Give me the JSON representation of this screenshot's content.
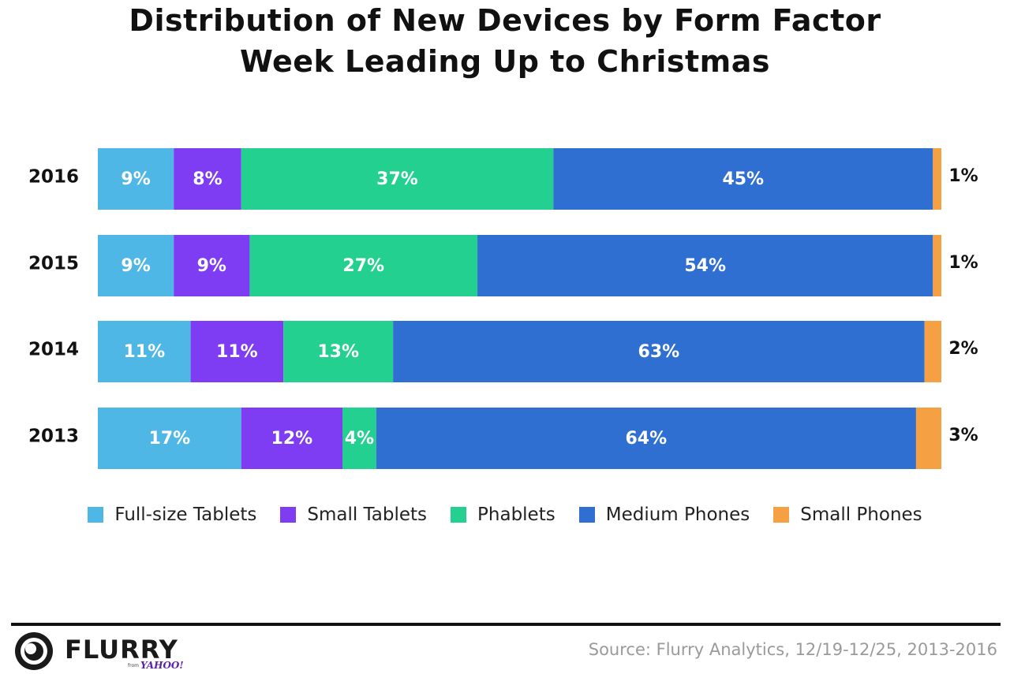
{
  "chart_data": {
    "type": "bar",
    "orientation": "horizontal",
    "stacked": true,
    "title": "Distribution of New Devices by Form Factor",
    "subtitle": "Week Leading Up to Christmas",
    "categories": [
      "2016",
      "2015",
      "2014",
      "2013"
    ],
    "series": [
      {
        "name": "Full-size Tablets",
        "color": "#4fb7e6",
        "values": [
          9,
          9,
          11,
          17
        ],
        "labels": [
          "9%",
          "9%",
          "11%",
          "17%"
        ]
      },
      {
        "name": "Small Tablets",
        "color": "#7e3df2",
        "values": [
          8,
          9,
          11,
          12
        ],
        "labels": [
          "8%",
          "9%",
          "11%",
          "12%"
        ]
      },
      {
        "name": "Phablets",
        "color": "#23d08f",
        "values": [
          37,
          27,
          13,
          4
        ],
        "labels": [
          "37%",
          "27%",
          "13%",
          "4%"
        ]
      },
      {
        "name": "Medium Phones",
        "color": "#2f6fd1",
        "values": [
          45,
          54,
          63,
          64
        ],
        "labels": [
          "45%",
          "54%",
          "63%",
          "64%"
        ]
      },
      {
        "name": "Small Phones",
        "color": "#f5a042",
        "values": [
          1,
          1,
          2,
          3
        ],
        "labels": [
          "1%",
          "1%",
          "2%",
          "3%"
        ]
      }
    ],
    "xlim": [
      0,
      100
    ],
    "grid": false,
    "legend": "bottom"
  },
  "footer": {
    "logo_text": "FLURRY",
    "logo_from": "from",
    "logo_yahoo": "YAHOO!",
    "source": "Source: Flurry Analytics, 12/19-12/25, 2013-2016"
  }
}
